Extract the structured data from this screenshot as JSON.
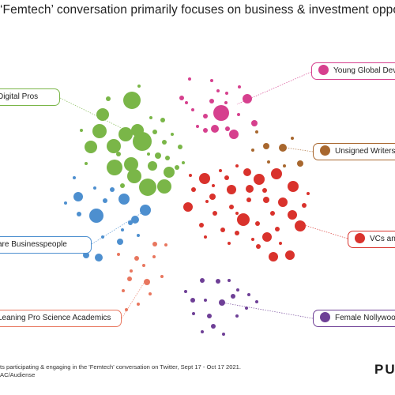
{
  "title": "‘Femtech’ conversation primarily focuses on business & investment oppor",
  "colors": {
    "green": "#7ab648",
    "pink": "#d6408e",
    "brown": "#a8672e",
    "red": "#d9322c",
    "blue": "#4d8fcf",
    "salmon": "#e8765e",
    "purple": "#6e3f96"
  },
  "segments": [
    {
      "key": "green",
      "label": "Digital Pros",
      "dot": false
    },
    {
      "key": "pink",
      "label": "Young Global Devs",
      "dot": true
    },
    {
      "key": "brown",
      "label": "Unsigned Writers",
      "dot": true
    },
    {
      "key": "red",
      "label": "VCs and",
      "dot": true
    },
    {
      "key": "blue",
      "label": "are Businesspeople",
      "dot": false
    },
    {
      "key": "salmon",
      "label": "Leaning Pro Science Academics",
      "dot": false
    },
    {
      "key": "purple",
      "label": "Female Nollywood",
      "dot": true
    }
  ],
  "footnote": {
    "line1": "ts participating & engaging in the 'Femtech' conversation on Twitter, Sept 17  - Oct 17 2021.",
    "line2": "AC/Audiense"
  },
  "brand": "PU"
}
